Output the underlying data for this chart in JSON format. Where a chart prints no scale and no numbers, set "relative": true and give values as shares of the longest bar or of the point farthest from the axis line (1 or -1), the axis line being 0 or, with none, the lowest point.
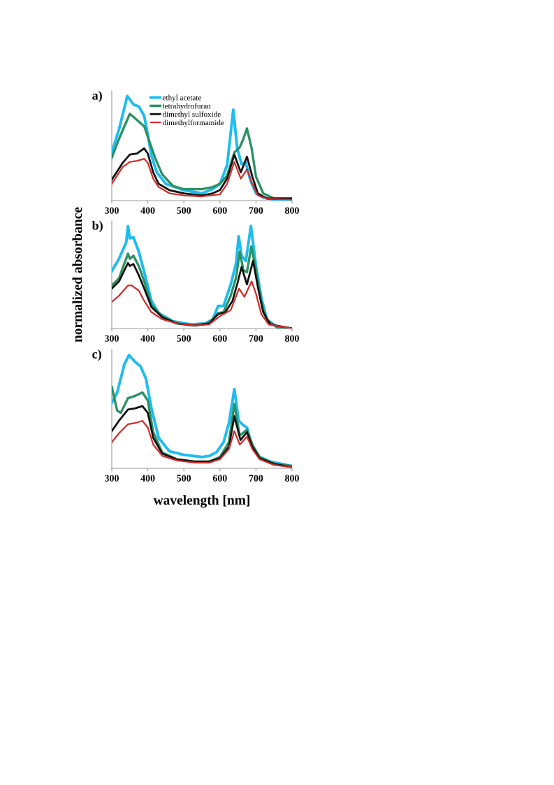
{
  "chart_data": [
    {
      "type": "line",
      "title": "a)",
      "relative": true,
      "xlim": [
        300,
        800
      ],
      "xticks": [
        300,
        400,
        500,
        600,
        700,
        800
      ],
      "grid": false,
      "legend": "top",
      "marker": "none",
      "line_style": "solid",
      "series": [
        {
          "name": "ethyl acetate",
          "color": "#1ebcf0",
          "x": [
            300,
            320,
            343,
            360,
            375,
            390,
            400,
            410,
            425,
            450,
            500,
            550,
            580,
            600,
            620,
            637,
            648,
            660,
            672,
            685,
            700,
            720,
            750,
            800
          ],
          "values": [
            0.46,
            0.68,
            1.0,
            0.92,
            0.9,
            0.81,
            0.63,
            0.43,
            0.27,
            0.16,
            0.1,
            0.07,
            0.11,
            0.16,
            0.34,
            0.87,
            0.5,
            0.35,
            0.36,
            0.19,
            0.07,
            0.03,
            0.01,
            0.01
          ]
        },
        {
          "name": "tetrahydrofuran",
          "color": "#2a9163",
          "x": [
            300,
            320,
            350,
            370,
            390,
            405,
            420,
            440,
            470,
            500,
            550,
            580,
            600,
            620,
            640,
            655,
            665,
            675,
            688,
            700,
            720,
            750,
            800
          ],
          "values": [
            0.41,
            0.59,
            0.83,
            0.77,
            0.71,
            0.56,
            0.41,
            0.25,
            0.14,
            0.11,
            0.11,
            0.13,
            0.16,
            0.24,
            0.46,
            0.51,
            0.59,
            0.69,
            0.5,
            0.23,
            0.07,
            0.02,
            0.02
          ]
        },
        {
          "name": "dimethyl sulfoxide",
          "color": "#111111",
          "x": [
            300,
            330,
            350,
            370,
            390,
            400,
            415,
            430,
            460,
            500,
            550,
            580,
            600,
            620,
            640,
            658,
            675,
            690,
            705,
            730,
            800
          ],
          "values": [
            0.2,
            0.36,
            0.44,
            0.45,
            0.5,
            0.45,
            0.27,
            0.16,
            0.1,
            0.07,
            0.05,
            0.07,
            0.1,
            0.21,
            0.44,
            0.27,
            0.42,
            0.23,
            0.07,
            0.02,
            0.02
          ]
        },
        {
          "name": "dimethylformamide",
          "color": "#d42a2a",
          "x": [
            300,
            330,
            350,
            370,
            390,
            400,
            415,
            430,
            460,
            500,
            550,
            600,
            620,
            640,
            658,
            675,
            690,
            705,
            730,
            800
          ],
          "values": [
            0.16,
            0.32,
            0.37,
            0.38,
            0.4,
            0.36,
            0.21,
            0.13,
            0.07,
            0.05,
            0.04,
            0.06,
            0.16,
            0.37,
            0.21,
            0.3,
            0.16,
            0.05,
            0.02,
            0.01
          ]
        }
      ]
    },
    {
      "type": "line",
      "title": "b)",
      "ylabel": "normalized absorbance",
      "relative": true,
      "xlim": [
        300,
        800
      ],
      "xticks": [
        300,
        400,
        500,
        600,
        700,
        800
      ],
      "grid": false,
      "marker": "none",
      "line_style": "solid",
      "series": [
        {
          "color": "#1ebcf0",
          "x": [
            300,
            320,
            340,
            345,
            350,
            360,
            375,
            390,
            410,
            430,
            470,
            520,
            560,
            580,
            595,
            610,
            630,
            645,
            652,
            660,
            672,
            686,
            700,
            715,
            730,
            760,
            800
          ],
          "values": [
            0.56,
            0.68,
            0.84,
            1.0,
            0.88,
            0.89,
            0.75,
            0.55,
            0.27,
            0.15,
            0.07,
            0.04,
            0.05,
            0.09,
            0.22,
            0.22,
            0.43,
            0.64,
            0.9,
            0.71,
            0.66,
            1.0,
            0.61,
            0.3,
            0.09,
            0.01,
            0.0
          ]
        },
        {
          "color": "#2a9163",
          "x": [
            300,
            320,
            345,
            350,
            360,
            375,
            390,
            410,
            440,
            480,
            530,
            570,
            595,
            610,
            630,
            645,
            655,
            665,
            675,
            687,
            700,
            715,
            730,
            760,
            800
          ],
          "values": [
            0.42,
            0.49,
            0.73,
            0.68,
            0.71,
            0.61,
            0.46,
            0.23,
            0.12,
            0.05,
            0.03,
            0.05,
            0.15,
            0.16,
            0.32,
            0.5,
            0.75,
            0.57,
            0.55,
            0.8,
            0.57,
            0.25,
            0.08,
            0.01,
            0.0
          ]
        },
        {
          "color": "#111111",
          "x": [
            300,
            320,
            345,
            350,
            360,
            375,
            390,
            410,
            440,
            480,
            530,
            570,
            595,
            615,
            635,
            650,
            660,
            675,
            692,
            705,
            720,
            740,
            800
          ],
          "values": [
            0.39,
            0.46,
            0.64,
            0.61,
            0.63,
            0.52,
            0.39,
            0.21,
            0.11,
            0.05,
            0.03,
            0.05,
            0.14,
            0.16,
            0.27,
            0.46,
            0.6,
            0.43,
            0.66,
            0.41,
            0.16,
            0.04,
            0.0
          ]
        },
        {
          "color": "#d42a2a",
          "x": [
            300,
            320,
            345,
            355,
            375,
            390,
            410,
            440,
            480,
            530,
            570,
            600,
            630,
            653,
            668,
            688,
            700,
            715,
            735,
            800
          ],
          "values": [
            0.26,
            0.32,
            0.42,
            0.42,
            0.37,
            0.27,
            0.16,
            0.09,
            0.05,
            0.03,
            0.04,
            0.12,
            0.18,
            0.39,
            0.31,
            0.46,
            0.34,
            0.14,
            0.04,
            0.0
          ]
        }
      ]
    },
    {
      "type": "line",
      "title": "c)",
      "xlabel": "wavelength [nm]",
      "relative": true,
      "xlim": [
        300,
        800
      ],
      "xticks": [
        300,
        400,
        500,
        600,
        700,
        800
      ],
      "grid": false,
      "marker": "none",
      "line_style": "solid",
      "series": [
        {
          "color": "#1ebcf0",
          "x": [
            300,
            315,
            335,
            348,
            365,
            380,
            395,
            410,
            430,
            460,
            500,
            550,
            570,
            590,
            610,
            625,
            640,
            652,
            665,
            675,
            690,
            710,
            740,
            800
          ],
          "values": [
            0.58,
            0.67,
            0.92,
            1.0,
            0.94,
            0.9,
            0.79,
            0.53,
            0.27,
            0.15,
            0.12,
            0.1,
            0.11,
            0.14,
            0.23,
            0.4,
            0.7,
            0.42,
            0.38,
            0.36,
            0.18,
            0.1,
            0.06,
            0.02
          ]
        },
        {
          "color": "#2a9163",
          "x": [
            300,
            315,
            325,
            345,
            365,
            385,
            400,
            415,
            440,
            480,
            530,
            570,
            600,
            625,
            640,
            655,
            675,
            690,
            710,
            750,
            800
          ],
          "values": [
            0.72,
            0.51,
            0.49,
            0.62,
            0.64,
            0.67,
            0.6,
            0.32,
            0.14,
            0.08,
            0.06,
            0.06,
            0.1,
            0.23,
            0.57,
            0.29,
            0.34,
            0.21,
            0.1,
            0.04,
            0.02
          ]
        },
        {
          "color": "#111111",
          "x": [
            300,
            320,
            345,
            365,
            385,
            400,
            415,
            440,
            480,
            530,
            570,
            600,
            625,
            640,
            657,
            675,
            690,
            710,
            750,
            800
          ],
          "values": [
            0.33,
            0.42,
            0.52,
            0.53,
            0.55,
            0.49,
            0.27,
            0.13,
            0.08,
            0.06,
            0.06,
            0.09,
            0.19,
            0.46,
            0.25,
            0.32,
            0.19,
            0.09,
            0.04,
            0.01
          ]
        },
        {
          "color": "#d42a2a",
          "x": [
            300,
            320,
            345,
            365,
            385,
            400,
            415,
            440,
            480,
            530,
            570,
            600,
            625,
            640,
            655,
            675,
            690,
            710,
            750,
            800
          ],
          "values": [
            0.23,
            0.31,
            0.39,
            0.4,
            0.42,
            0.36,
            0.21,
            0.11,
            0.07,
            0.05,
            0.05,
            0.08,
            0.17,
            0.33,
            0.21,
            0.28,
            0.17,
            0.08,
            0.03,
            0.01
          ]
        }
      ]
    }
  ]
}
